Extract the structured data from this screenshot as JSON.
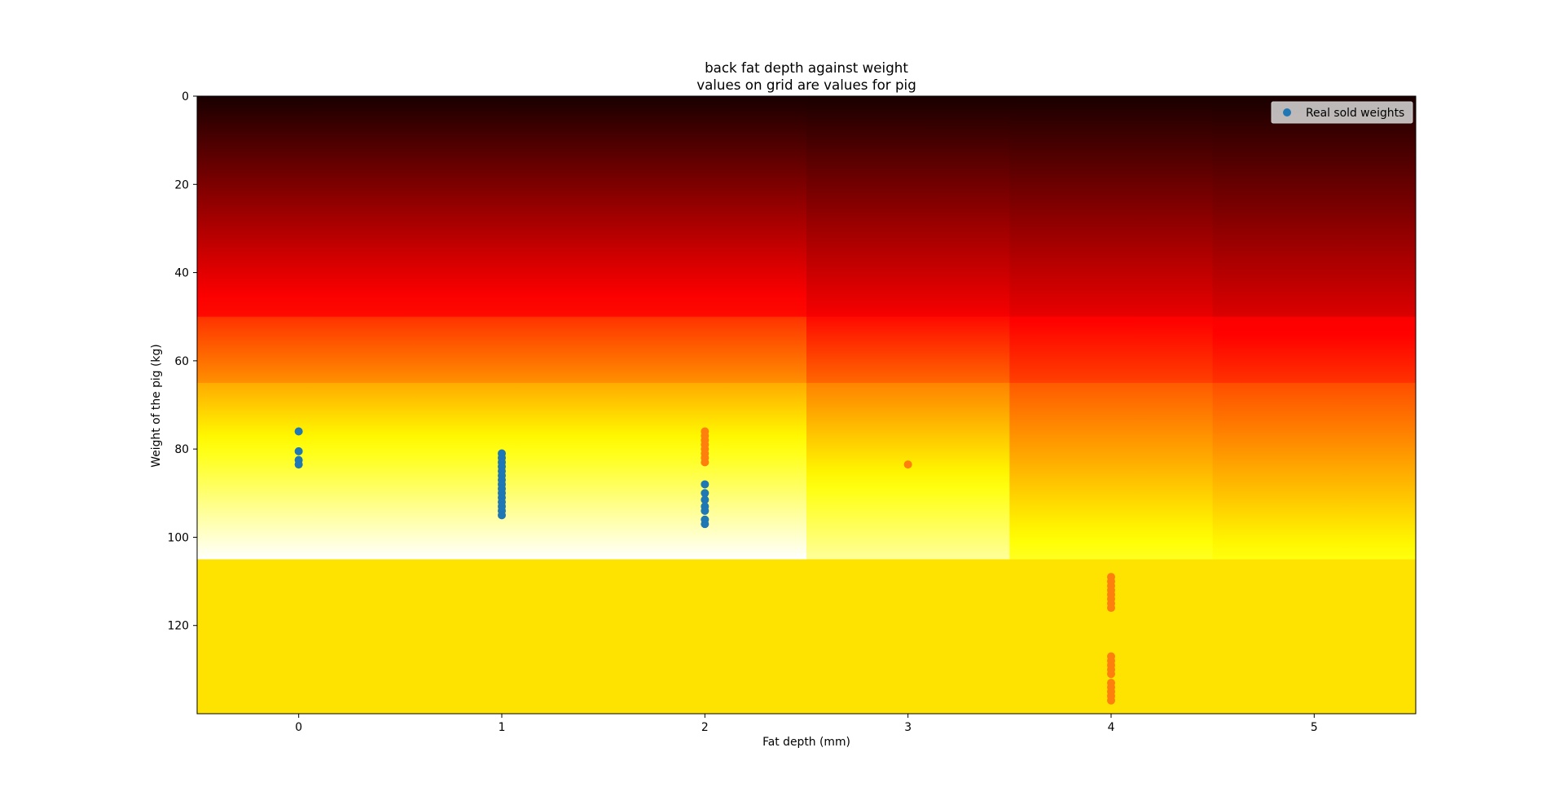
{
  "chart_data": {
    "type": "heatmap",
    "title": [
      "back fat depth against weight",
      "values on grid are values for pig"
    ],
    "xlabel": "Fat depth (mm)",
    "ylabel": "Weight of the pig (kg)",
    "xlim": [
      -0.5,
      5.5
    ],
    "ylim": [
      140,
      0
    ],
    "y_inverted": true,
    "grid": false,
    "x_ticks": [
      0,
      1,
      2,
      3,
      4,
      5
    ],
    "y_ticks": [
      0,
      20,
      40,
      60,
      80,
      100,
      120
    ],
    "heatmap": {
      "colormap": "hot",
      "columns": [
        {
          "x_range": [
            -0.5,
            2.5
          ],
          "bands": [
            {
              "y_range": [
                0,
                50
              ],
              "from": 0.02,
              "to": 0.38
            },
            {
              "y_range": [
                50,
                65
              ],
              "from": 0.44,
              "to": 0.58
            },
            {
              "y_range": [
                65,
                105
              ],
              "from": 0.62,
              "to": 1.0
            },
            {
              "y_range": [
                105,
                140
              ],
              "color": "#FFE300"
            }
          ]
        },
        {
          "x_range": [
            2.5,
            3.5
          ],
          "bands": [
            {
              "y_range": [
                0,
                50
              ],
              "from": 0.02,
              "to": 0.34
            },
            {
              "y_range": [
                50,
                65
              ],
              "from": 0.38,
              "to": 0.52
            },
            {
              "y_range": [
                65,
                105
              ],
              "from": 0.56,
              "to": 0.9
            },
            {
              "y_range": [
                105,
                140
              ],
              "color": "#FFE300"
            }
          ]
        },
        {
          "x_range": [
            3.5,
            4.5
          ],
          "bands": [
            {
              "y_range": [
                0,
                50
              ],
              "from": 0.02,
              "to": 0.32
            },
            {
              "y_range": [
                50,
                65
              ],
              "from": 0.36,
              "to": 0.46
            },
            {
              "y_range": [
                65,
                105
              ],
              "from": 0.5,
              "to": 0.78
            },
            {
              "y_range": [
                105,
                140
              ],
              "color": "#FFE300"
            }
          ]
        },
        {
          "x_range": [
            4.5,
            5.5
          ],
          "bands": [
            {
              "y_range": [
                0,
                50
              ],
              "from": 0.02,
              "to": 0.3
            },
            {
              "y_range": [
                50,
                65
              ],
              "from": 0.34,
              "to": 0.44
            },
            {
              "y_range": [
                65,
                105
              ],
              "from": 0.48,
              "to": 0.76
            },
            {
              "y_range": [
                105,
                140
              ],
              "color": "#FFE300"
            }
          ]
        }
      ]
    },
    "legend": {
      "placement": "top-right",
      "entries": [
        {
          "label": "Real sold weights",
          "color": "#1f77b4"
        }
      ]
    },
    "series": [
      {
        "name": "Real sold weights",
        "color": "#1f77b4",
        "points": [
          {
            "x": 0,
            "y": 76
          },
          {
            "x": 0,
            "y": 80.5
          },
          {
            "x": 0,
            "y": 82.5
          },
          {
            "x": 0,
            "y": 83.5
          },
          {
            "x": 1,
            "y": 81
          },
          {
            "x": 1,
            "y": 82
          },
          {
            "x": 1,
            "y": 83
          },
          {
            "x": 1,
            "y": 84
          },
          {
            "x": 1,
            "y": 85
          },
          {
            "x": 1,
            "y": 86
          },
          {
            "x": 1,
            "y": 87
          },
          {
            "x": 1,
            "y": 88
          },
          {
            "x": 1,
            "y": 89
          },
          {
            "x": 1,
            "y": 90
          },
          {
            "x": 1,
            "y": 91
          },
          {
            "x": 1,
            "y": 92
          },
          {
            "x": 1,
            "y": 93
          },
          {
            "x": 1,
            "y": 94
          },
          {
            "x": 1,
            "y": 95
          },
          {
            "x": 2,
            "y": 88
          },
          {
            "x": 2,
            "y": 90
          },
          {
            "x": 2,
            "y": 91.5
          },
          {
            "x": 2,
            "y": 93
          },
          {
            "x": 2,
            "y": 94
          },
          {
            "x": 2,
            "y": 96
          },
          {
            "x": 2,
            "y": 97
          }
        ]
      },
      {
        "color": "#ff7f0e",
        "points": [
          {
            "x": 2,
            "y": 76
          },
          {
            "x": 2,
            "y": 77
          },
          {
            "x": 2,
            "y": 78
          },
          {
            "x": 2,
            "y": 79
          },
          {
            "x": 2,
            "y": 80
          },
          {
            "x": 2,
            "y": 81
          },
          {
            "x": 2,
            "y": 82
          },
          {
            "x": 2,
            "y": 83
          },
          {
            "x": 3,
            "y": 83.5
          },
          {
            "x": 4,
            "y": 109
          },
          {
            "x": 4,
            "y": 110
          },
          {
            "x": 4,
            "y": 111
          },
          {
            "x": 4,
            "y": 112
          },
          {
            "x": 4,
            "y": 113
          },
          {
            "x": 4,
            "y": 114
          },
          {
            "x": 4,
            "y": 115
          },
          {
            "x": 4,
            "y": 116
          },
          {
            "x": 4,
            "y": 127
          },
          {
            "x": 4,
            "y": 128
          },
          {
            "x": 4,
            "y": 129
          },
          {
            "x": 4,
            "y": 130
          },
          {
            "x": 4,
            "y": 131
          },
          {
            "x": 4,
            "y": 133
          },
          {
            "x": 4,
            "y": 134
          },
          {
            "x": 4,
            "y": 135
          },
          {
            "x": 4,
            "y": 136
          },
          {
            "x": 4,
            "y": 137
          }
        ]
      }
    ]
  }
}
